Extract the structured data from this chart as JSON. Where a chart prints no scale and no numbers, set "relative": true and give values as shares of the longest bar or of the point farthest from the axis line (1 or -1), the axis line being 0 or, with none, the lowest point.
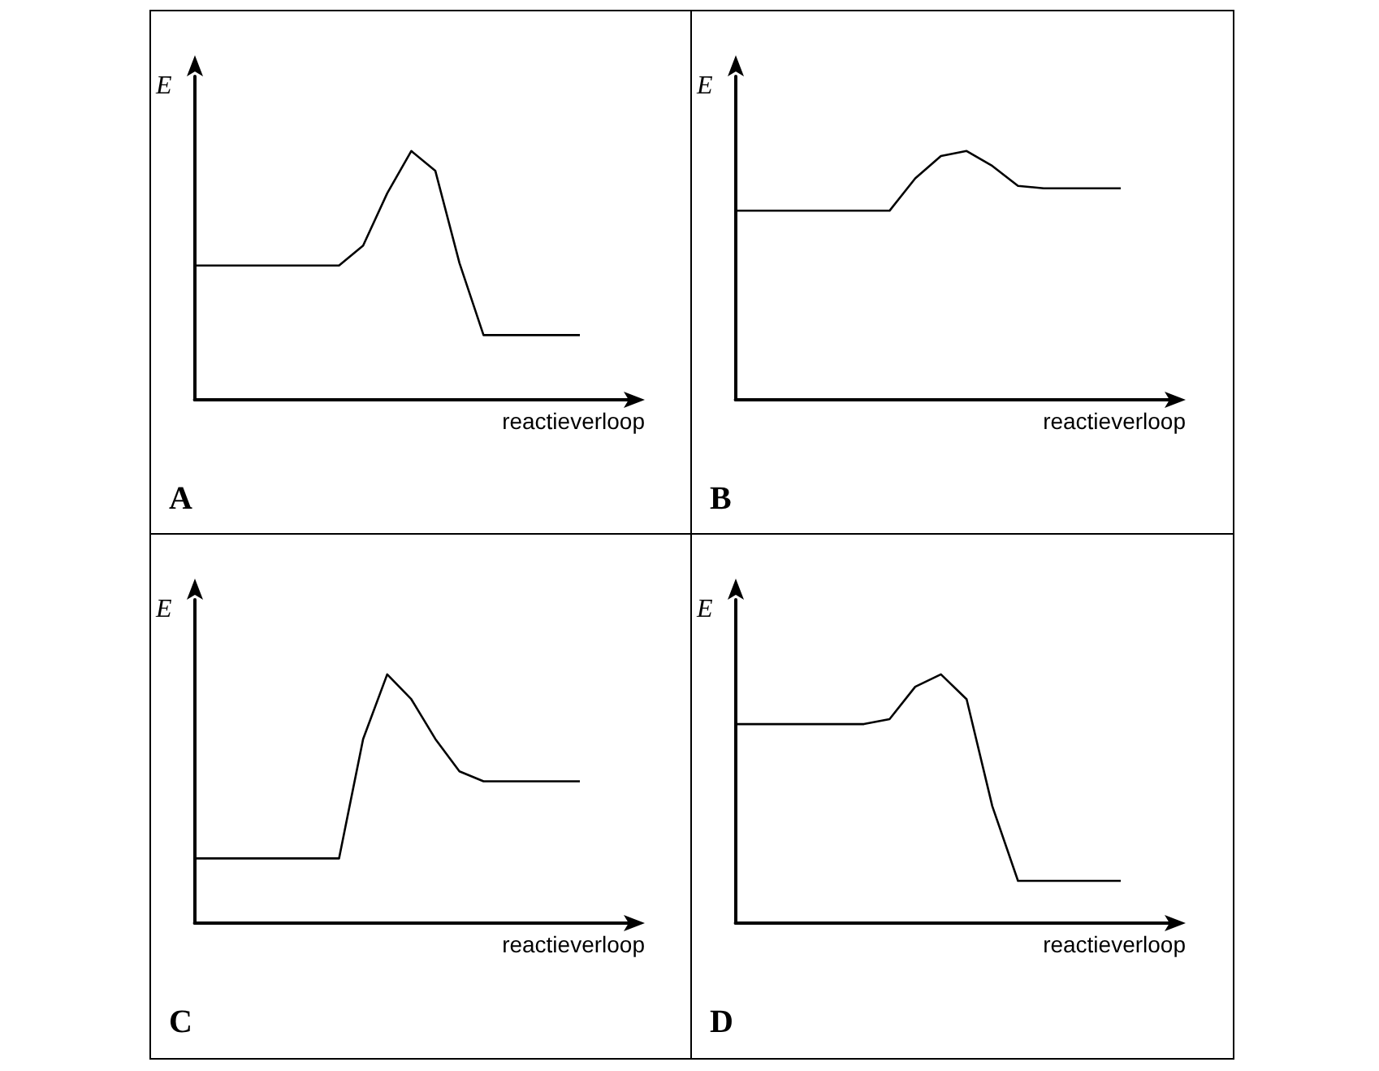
{
  "chart_data": [
    {
      "type": "line",
      "title": "A",
      "xlabel": "reactieverloop",
      "ylabel": "E",
      "relative": true,
      "marker": "none",
      "color": "#000000",
      "categories": [
        null,
        null,
        null,
        null,
        null,
        null,
        null,
        null,
        null,
        null,
        null,
        null,
        null,
        null,
        null,
        null,
        null
      ],
      "values": [
        0.54,
        0.54,
        0.54,
        0.54,
        0.54,
        0.54,
        0.54,
        0.62,
        0.83,
        1,
        0.92,
        0.55,
        0.26,
        0.26,
        0.26,
        0.26,
        0.26
      ]
    },
    {
      "type": "line",
      "title": "B",
      "xlabel": "reactieverloop",
      "ylabel": "E",
      "relative": true,
      "marker": "none",
      "color": "#000000",
      "categories": [
        null,
        null,
        null,
        null,
        null,
        null,
        null,
        null,
        null,
        null,
        null,
        null,
        null,
        null,
        null,
        null
      ],
      "values": [
        0.76,
        0.76,
        0.76,
        0.76,
        0.76,
        0.76,
        0.76,
        0.89,
        0.98,
        1,
        0.94,
        0.86,
        0.85,
        0.85,
        0.85,
        0.85
      ]
    },
    {
      "type": "line",
      "title": "C",
      "xlabel": "reactieverloop",
      "ylabel": "E",
      "relative": true,
      "marker": "none",
      "color": "#000000",
      "categories": [
        null,
        null,
        null,
        null,
        null,
        null,
        null,
        null,
        null,
        null,
        null,
        null,
        null,
        null,
        null,
        null,
        null
      ],
      "values": [
        0.26,
        0.26,
        0.26,
        0.26,
        0.26,
        0.26,
        0.26,
        0.74,
        1,
        0.9,
        0.74,
        0.61,
        0.57,
        0.57,
        0.57,
        0.57,
        0.57
      ]
    },
    {
      "type": "line",
      "title": "D",
      "xlabel": "reactieverloop",
      "ylabel": "E",
      "relative": true,
      "marker": "none",
      "color": "#000000",
      "categories": [
        null,
        null,
        null,
        null,
        null,
        null,
        null,
        null,
        null,
        null,
        null,
        null,
        null,
        null,
        null,
        null
      ],
      "values": [
        0.8,
        0.8,
        0.8,
        0.8,
        0.8,
        0.8,
        0.82,
        0.95,
        1,
        0.9,
        0.47,
        0.17,
        0.17,
        0.17,
        0.17,
        0.17
      ]
    }
  ]
}
